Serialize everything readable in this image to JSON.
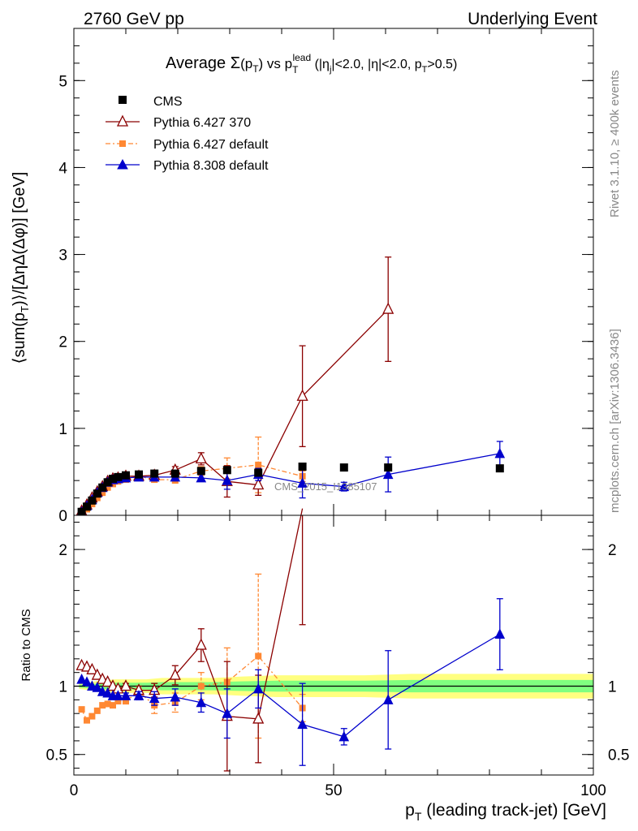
{
  "header": {
    "left": "2760 GeV pp",
    "right": "Underlying Event"
  },
  "side_labels": {
    "rivet": "Rivet 3.1.10, ≥ 400k events",
    "mcplots": "mcplots.cern.ch [arXiv:1306.3436]"
  },
  "watermark": "CMS_2015_I1385107",
  "chart_data": [
    {
      "type": "scatter",
      "panel": "main",
      "title_parts": {
        "t1": "Average ",
        "sigma": "Σ",
        "t2": "(p",
        "t2sub": "T",
        "t3": ") vs p",
        "t3sub": "T",
        "t3sup": "lead",
        "t4": " (|η",
        "t4sub": "j",
        "t5": "|<2.0, |η|<2.0, p",
        "t5sub": "T",
        "t6": ">0.5)"
      },
      "ylabel": "⟨sum(p_T)⟩/[ΔηΔ(Δφ)] [GeV]",
      "ylabel_parts": {
        "a": "⟨sum(p",
        "sub": "T",
        "b": ")⟩/[ΔηΔ(Δφ)] [GeV]"
      },
      "xlim": [
        0,
        100
      ],
      "ylim": [
        0,
        5.6
      ],
      "yticks": [
        0,
        1,
        2,
        3,
        4,
        5
      ],
      "xticks": [
        0,
        50,
        100
      ],
      "legend": "top-left",
      "series": [
        {
          "name": "CMS",
          "color": "#000000",
          "marker": "square-filled",
          "line": "none",
          "x": [
            1.5,
            2.5,
            3.5,
            4.5,
            5.5,
            6.5,
            7.5,
            8.5,
            10,
            12.5,
            15.5,
            19.5,
            24.5,
            29.5,
            35.5,
            44,
            52,
            60.5,
            82
          ],
          "y": [
            0.04,
            0.1,
            0.17,
            0.25,
            0.32,
            0.38,
            0.42,
            0.44,
            0.46,
            0.47,
            0.48,
            0.48,
            0.51,
            0.52,
            0.49,
            0.56,
            0.55,
            0.55,
            0.54
          ],
          "err": [
            0,
            0,
            0,
            0,
            0,
            0,
            0,
            0,
            0,
            0,
            0,
            0,
            0,
            0,
            0,
            0,
            0,
            0,
            0
          ]
        },
        {
          "name": "Pythia 6.427 370",
          "color": "#8b0000",
          "marker": "triangle-open",
          "line": "solid",
          "x": [
            1.5,
            2.5,
            3.5,
            4.5,
            5.5,
            6.5,
            7.5,
            8.5,
            10,
            12.5,
            15.5,
            19.5,
            24.5,
            29.5,
            35.5,
            44,
            60.5
          ],
          "y": [
            0.05,
            0.12,
            0.2,
            0.27,
            0.33,
            0.39,
            0.42,
            0.43,
            0.45,
            0.45,
            0.46,
            0.52,
            0.65,
            0.39,
            0.35,
            1.37,
            2.37
          ],
          "err": [
            0,
            0,
            0,
            0,
            0,
            0,
            0,
            0,
            0.01,
            0.02,
            0.03,
            0.04,
            0.07,
            0.18,
            0.12,
            0.58,
            0.6
          ]
        },
        {
          "name": "Pythia 6.427 default",
          "color": "#ff8833",
          "marker": "square-filled",
          "line": "dashdot",
          "x": [
            1.5,
            2.5,
            3.5,
            4.5,
            5.5,
            6.5,
            7.5,
            8.5,
            10,
            12.5,
            15.5,
            19.5,
            24.5,
            29.5,
            35.5,
            44
          ],
          "y": [
            0.03,
            0.07,
            0.13,
            0.2,
            0.26,
            0.32,
            0.36,
            0.39,
            0.41,
            0.45,
            0.41,
            0.41,
            0.51,
            0.54,
            0.58,
            0.45
          ],
          "err": [
            0,
            0,
            0,
            0,
            0,
            0,
            0,
            0,
            0.01,
            0.02,
            0.03,
            0.04,
            0.05,
            0.12,
            0.32,
            0.06
          ]
        },
        {
          "name": "Pythia 8.308 default",
          "color": "#0000cc",
          "marker": "triangle-filled",
          "line": "solid",
          "x": [
            1.5,
            2.5,
            3.5,
            4.5,
            5.5,
            6.5,
            7.5,
            8.5,
            10,
            12.5,
            15.5,
            19.5,
            24.5,
            29.5,
            35.5,
            44,
            52,
            60.5,
            82
          ],
          "y": [
            0.04,
            0.11,
            0.18,
            0.26,
            0.32,
            0.38,
            0.41,
            0.42,
            0.43,
            0.44,
            0.44,
            0.44,
            0.43,
            0.4,
            0.47,
            0.37,
            0.33,
            0.47,
            0.71
          ],
          "err": [
            0,
            0,
            0,
            0,
            0,
            0,
            0,
            0,
            0.01,
            0.02,
            0.03,
            0.04,
            0.04,
            0.1,
            0.07,
            0.17,
            0.05,
            0.2,
            0.14
          ]
        }
      ]
    },
    {
      "type": "scatter",
      "panel": "ratio",
      "ylabel": "Ratio to CMS",
      "xlabel": "p_T (leading track-jet) [GeV]",
      "xlabel_parts": {
        "a": "p",
        "sub": "T",
        "b": " (leading track-jet) [GeV]"
      },
      "xlim": [
        0,
        100
      ],
      "ylim": [
        0.35,
        2.25
      ],
      "yticks": [
        0.5,
        1,
        2
      ],
      "xticks": [
        0,
        50,
        100
      ],
      "reference_line": 1,
      "bands": {
        "outer_color": "#ffff80",
        "inner_color": "#80ff80",
        "x": [
          1,
          3,
          5,
          8,
          11,
          14,
          17,
          22,
          27,
          32,
          39,
          48,
          56,
          65,
          72,
          100
        ],
        "outer_half": [
          0.02,
          0.03,
          0.04,
          0.05,
          0.05,
          0.05,
          0.06,
          0.06,
          0.06,
          0.07,
          0.08,
          0.08,
          0.08,
          0.09,
          0.09,
          0.09
        ],
        "inner_half": [
          0.01,
          0.015,
          0.02,
          0.025,
          0.025,
          0.025,
          0.03,
          0.03,
          0.03,
          0.035,
          0.04,
          0.04,
          0.04,
          0.045,
          0.045,
          0.045
        ]
      },
      "series": [
        {
          "name": "Pythia 6.427 370",
          "color": "#8b0000",
          "marker": "triangle-open",
          "line": "solid",
          "x": [
            1.5,
            2.5,
            3.5,
            4.5,
            5.5,
            6.5,
            7.5,
            8.5,
            10,
            12.5,
            15.5,
            19.5,
            24.5,
            29.5,
            35.5,
            44
          ],
          "y": [
            1.15,
            1.14,
            1.12,
            1.08,
            1.05,
            1.03,
            1.0,
            0.98,
            1.0,
            0.97,
            0.97,
            1.08,
            1.3,
            0.78,
            0.76,
            2.3
          ],
          "err": [
            0,
            0,
            0,
            0,
            0,
            0,
            0,
            0,
            0.02,
            0.03,
            0.05,
            0.07,
            0.12,
            0.4,
            0.32,
            0.85
          ]
        },
        {
          "name": "Pythia 6.427 default",
          "color": "#ff8833",
          "marker": "square-filled",
          "line": "dashdot",
          "x": [
            1.5,
            2.5,
            3.5,
            4.5,
            5.5,
            6.5,
            7.5,
            8.5,
            10,
            12.5,
            15.5,
            19.5,
            24.5,
            29.5,
            35.5,
            44
          ],
          "y": [
            0.83,
            0.75,
            0.78,
            0.82,
            0.86,
            0.87,
            0.86,
            0.89,
            0.89,
            0.96,
            0.86,
            0.88,
            1.0,
            1.03,
            1.22,
            0.84
          ],
          "err": [
            0,
            0,
            0,
            0,
            0,
            0,
            0,
            0,
            0.02,
            0.04,
            0.06,
            0.07,
            0.1,
            0.25,
            0.6,
            0.1
          ]
        },
        {
          "name": "Pythia 8.308 default",
          "color": "#0000cc",
          "marker": "triangle-filled",
          "line": "solid",
          "x": [
            1.5,
            2.5,
            3.5,
            4.5,
            5.5,
            6.5,
            7.5,
            8.5,
            10,
            12.5,
            15.5,
            19.5,
            24.5,
            29.5,
            35.5,
            44,
            52,
            60.5,
            82
          ],
          "y": [
            1.05,
            1.03,
            1.0,
            0.99,
            0.96,
            0.95,
            0.93,
            0.93,
            0.93,
            0.93,
            0.91,
            0.92,
            0.88,
            0.8,
            0.98,
            0.72,
            0.63,
            0.9,
            1.38
          ],
          "err": [
            0,
            0,
            0,
            0,
            0,
            0,
            0,
            0,
            0.02,
            0.03,
            0.05,
            0.06,
            0.07,
            0.18,
            0.14,
            0.3,
            0.06,
            0.36,
            0.26
          ]
        }
      ]
    }
  ]
}
